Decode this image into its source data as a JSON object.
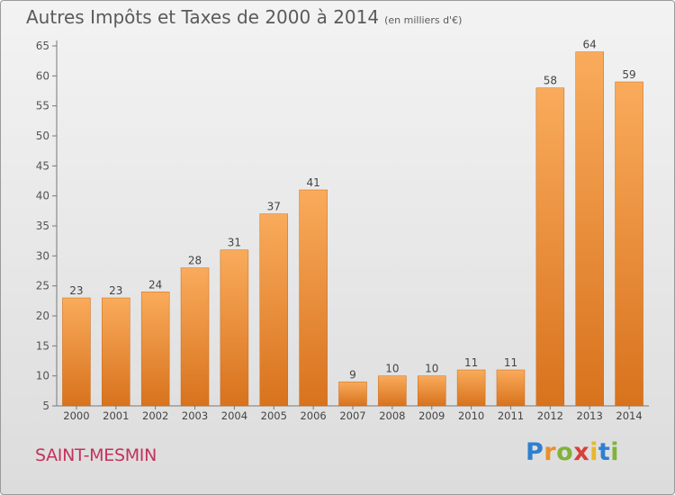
{
  "title": "Autres Impôts et Taxes de 2000 à 2014",
  "unit_label": "(en milliers d'€)",
  "commune": "SAINT-MESMIN",
  "logo_text": "Proxiti",
  "colors": {
    "bar_light": "#f7a755",
    "bar_dark": "#d9741f",
    "commune_text": "#c4315c"
  },
  "chart_data": {
    "type": "bar",
    "title": "Autres Impôts et Taxes de 2000 à 2014",
    "categories": [
      "2000",
      "2001",
      "2002",
      "2003",
      "2004",
      "2005",
      "2006",
      "2007",
      "2008",
      "2009",
      "2010",
      "2011",
      "2012",
      "2013",
      "2014"
    ],
    "values": [
      23,
      23,
      24,
      28,
      31,
      37,
      41,
      9,
      10,
      10,
      11,
      11,
      58,
      64,
      59
    ],
    "ylim": [
      5,
      65
    ],
    "yticks": [
      5,
      10,
      15,
      20,
      25,
      30,
      35,
      40,
      45,
      50,
      55,
      60,
      65
    ],
    "grid": false
  }
}
